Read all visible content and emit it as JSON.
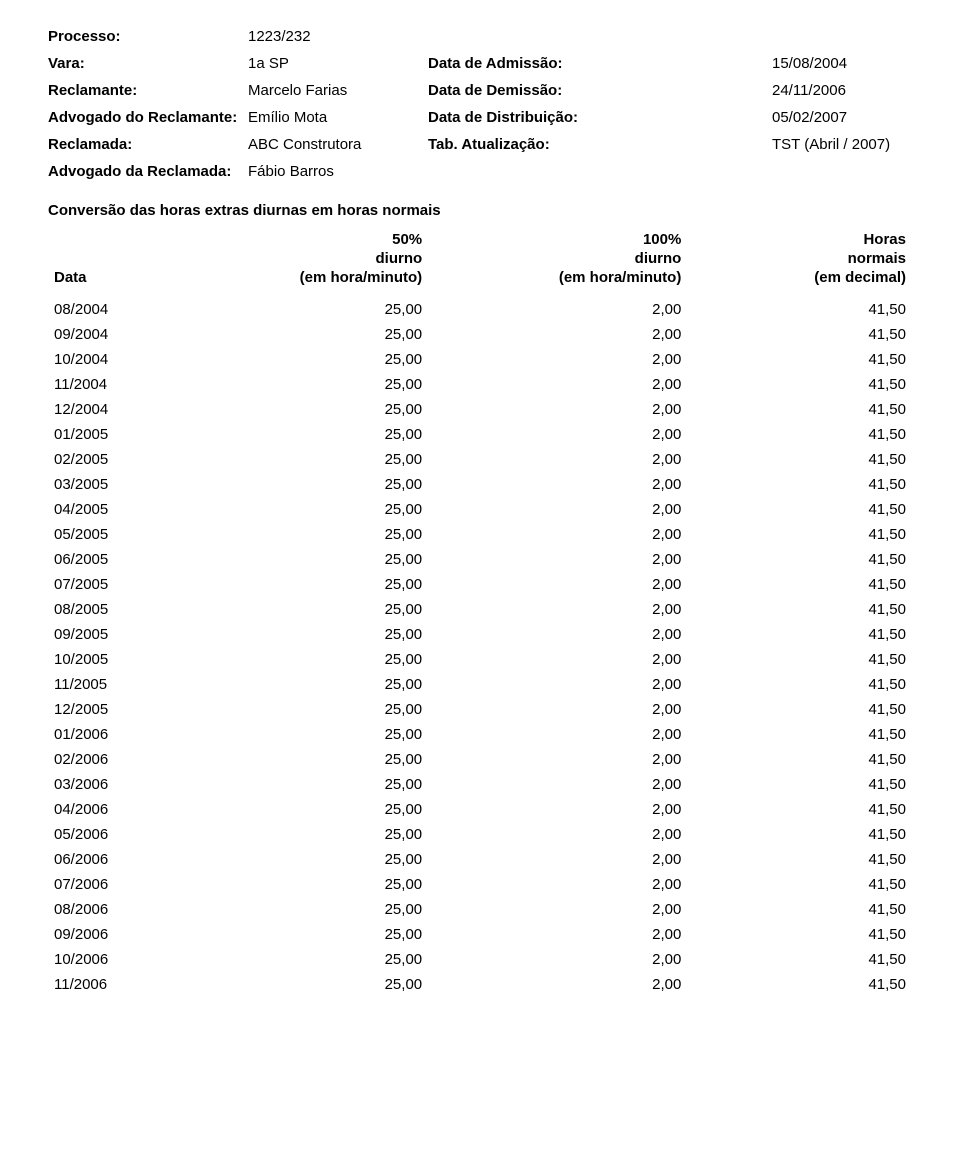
{
  "colors": {
    "background": "#ffffff",
    "text": "#000000"
  },
  "typography": {
    "font_family": "Arial, Helvetica, sans-serif",
    "base_fontsize_pt": 11,
    "bold_weight": 700
  },
  "header": {
    "rows": [
      {
        "label": "Processo:",
        "value": "1223/232",
        "label2": "",
        "value2": ""
      },
      {
        "label": "Vara:",
        "value": "1a SP",
        "label2": "Data de Admissão:",
        "value2": "15/08/2004"
      },
      {
        "label": "Reclamante:",
        "value": "Marcelo Farias",
        "label2": "Data de Demissão:",
        "value2": "24/11/2006"
      },
      {
        "label": "Advogado do Reclamante:",
        "value": "Emílio Mota",
        "label2": "Data de Distribuição:",
        "value2": "05/02/2007"
      },
      {
        "label": "Reclamada:",
        "value": "ABC Construtora",
        "label2": "Tab. Atualização:",
        "value2": "TST (Abril / 2007)"
      },
      {
        "label": "Advogado da Reclamada:",
        "value": "Fábio Barros",
        "label2": "",
        "value2": ""
      }
    ]
  },
  "section_title": "Conversão das horas extras diurnas em horas normais",
  "table": {
    "type": "table",
    "columns": [
      {
        "header_lines": [
          "Data"
        ],
        "align": "left",
        "width_pct": 14
      },
      {
        "header_lines": [
          "50%",
          "diurno",
          "(em hora/minuto)"
        ],
        "align": "right",
        "width_pct": 30
      },
      {
        "header_lines": [
          "100%",
          "diurno",
          "(em hora/minuto)"
        ],
        "align": "right",
        "width_pct": 30
      },
      {
        "header_lines": [
          "Horas",
          "normais",
          "(em decimal)"
        ],
        "align": "right",
        "width_pct": 26
      }
    ],
    "rows": [
      [
        "08/2004",
        "25,00",
        "2,00",
        "41,50"
      ],
      [
        "09/2004",
        "25,00",
        "2,00",
        "41,50"
      ],
      [
        "10/2004",
        "25,00",
        "2,00",
        "41,50"
      ],
      [
        "11/2004",
        "25,00",
        "2,00",
        "41,50"
      ],
      [
        "12/2004",
        "25,00",
        "2,00",
        "41,50"
      ],
      [
        "01/2005",
        "25,00",
        "2,00",
        "41,50"
      ],
      [
        "02/2005",
        "25,00",
        "2,00",
        "41,50"
      ],
      [
        "03/2005",
        "25,00",
        "2,00",
        "41,50"
      ],
      [
        "04/2005",
        "25,00",
        "2,00",
        "41,50"
      ],
      [
        "05/2005",
        "25,00",
        "2,00",
        "41,50"
      ],
      [
        "06/2005",
        "25,00",
        "2,00",
        "41,50"
      ],
      [
        "07/2005",
        "25,00",
        "2,00",
        "41,50"
      ],
      [
        "08/2005",
        "25,00",
        "2,00",
        "41,50"
      ],
      [
        "09/2005",
        "25,00",
        "2,00",
        "41,50"
      ],
      [
        "10/2005",
        "25,00",
        "2,00",
        "41,50"
      ],
      [
        "11/2005",
        "25,00",
        "2,00",
        "41,50"
      ],
      [
        "12/2005",
        "25,00",
        "2,00",
        "41,50"
      ],
      [
        "01/2006",
        "25,00",
        "2,00",
        "41,50"
      ],
      [
        "02/2006",
        "25,00",
        "2,00",
        "41,50"
      ],
      [
        "03/2006",
        "25,00",
        "2,00",
        "41,50"
      ],
      [
        "04/2006",
        "25,00",
        "2,00",
        "41,50"
      ],
      [
        "05/2006",
        "25,00",
        "2,00",
        "41,50"
      ],
      [
        "06/2006",
        "25,00",
        "2,00",
        "41,50"
      ],
      [
        "07/2006",
        "25,00",
        "2,00",
        "41,50"
      ],
      [
        "08/2006",
        "25,00",
        "2,00",
        "41,50"
      ],
      [
        "09/2006",
        "25,00",
        "2,00",
        "41,50"
      ],
      [
        "10/2006",
        "25,00",
        "2,00",
        "41,50"
      ],
      [
        "11/2006",
        "25,00",
        "2,00",
        "41,50"
      ]
    ]
  }
}
